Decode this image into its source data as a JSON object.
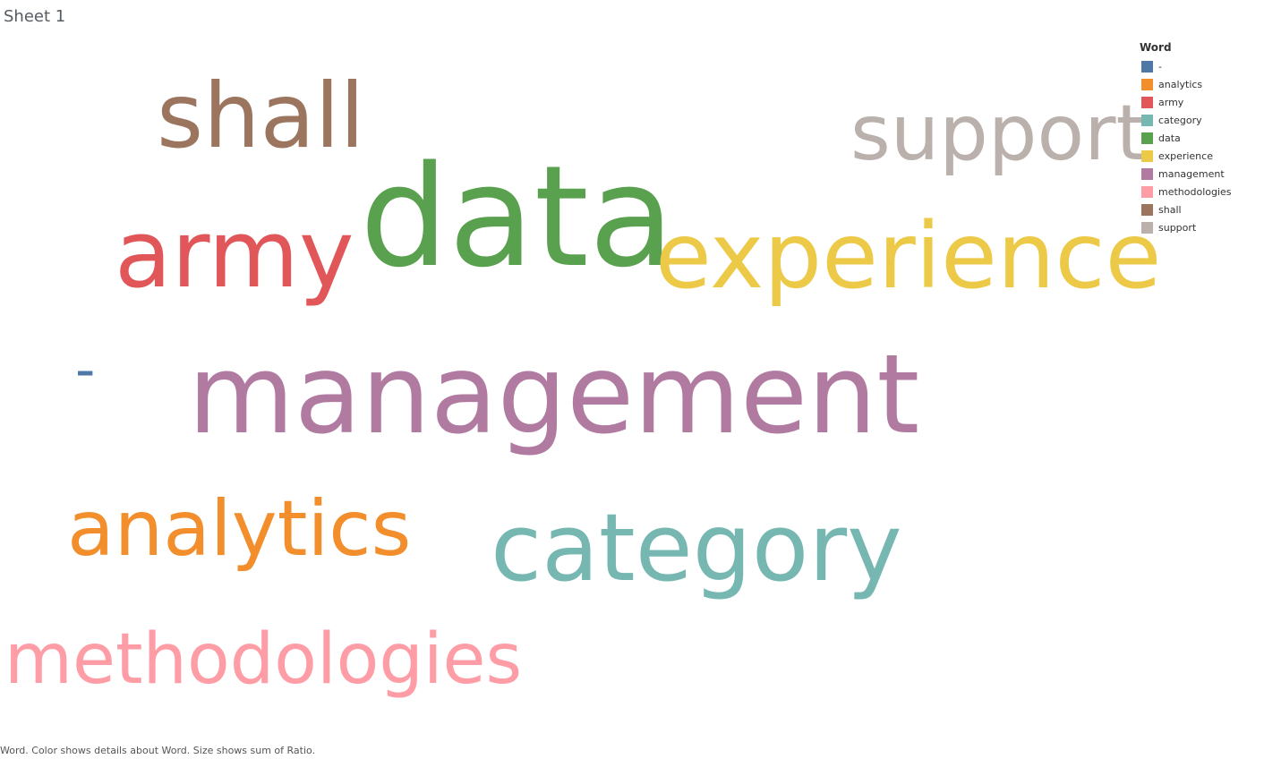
{
  "sheet": {
    "title": "Sheet 1"
  },
  "chart_data": {
    "type": "wordcloud",
    "encoding": {
      "color": "Word",
      "size": "sum of Ratio"
    },
    "words": [
      {
        "text": "data",
        "color": "#59a14f",
        "rank": 1
      },
      {
        "text": "management",
        "color": "#b07aa1",
        "rank": 2
      },
      {
        "text": "army",
        "color": "#e15759",
        "rank": 3
      },
      {
        "text": "experience",
        "color": "#edc948",
        "rank": 4
      },
      {
        "text": "category",
        "color": "#76b7b2",
        "rank": 5
      },
      {
        "text": "shall",
        "color": "#9c755f",
        "rank": 6
      },
      {
        "text": "analytics",
        "color": "#f28e2b",
        "rank": 7
      },
      {
        "text": "support",
        "color": "#bab0ac",
        "rank": 8
      },
      {
        "text": "methodologies",
        "color": "#ff9da7",
        "rank": 9
      },
      {
        "text": "-",
        "color": "#4e79a7",
        "rank": 10
      }
    ]
  },
  "legend": {
    "title": "Word",
    "items": [
      {
        "label": "-",
        "color": "#4e79a7"
      },
      {
        "label": "analytics",
        "color": "#f28e2b"
      },
      {
        "label": "army",
        "color": "#e15759"
      },
      {
        "label": "category",
        "color": "#76b7b2"
      },
      {
        "label": "data",
        "color": "#59a14f"
      },
      {
        "label": "experience",
        "color": "#edc948"
      },
      {
        "label": "management",
        "color": "#b07aa1"
      },
      {
        "label": "methodologies",
        "color": "#ff9da7"
      },
      {
        "label": "shall",
        "color": "#9c755f"
      },
      {
        "label": "support",
        "color": "#bab0ac"
      }
    ]
  },
  "caption": "Word.  Color shows details about Word.  Size shows sum of Ratio."
}
